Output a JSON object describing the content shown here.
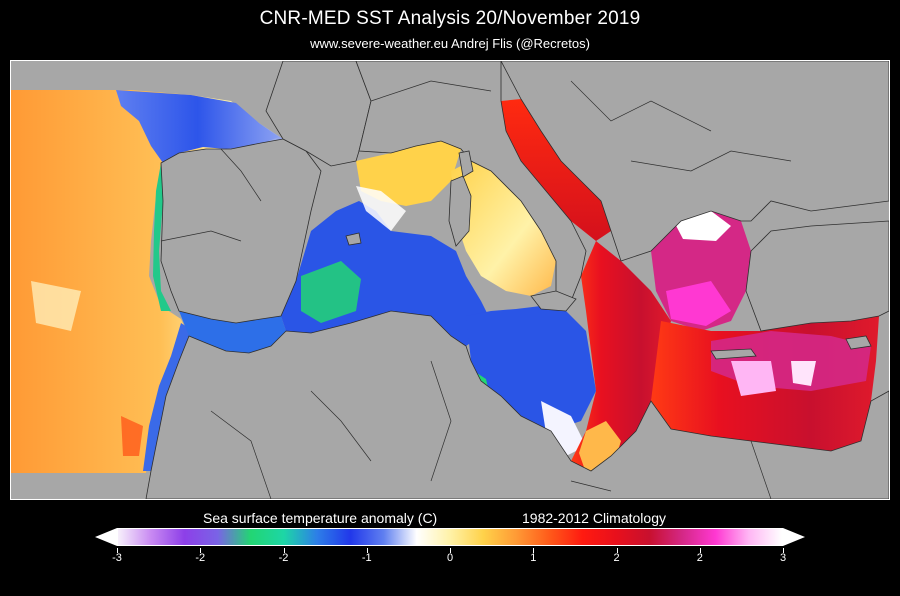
{
  "header": {
    "title": "CNR-MED SST Analysis  20/November 2019",
    "subtitle": "www.severe-weather.eu   Andrej Flis (@Recretos)"
  },
  "map": {
    "land_color": "#a7a7a7",
    "border_color": "#2f2f2f"
  },
  "legend": {
    "title": "Sea surface temperature anomaly (C)",
    "climatology": "1982-2012 Climatology",
    "tick_labels": [
      "-3",
      "-2",
      "-2",
      "-1",
      "0",
      "1",
      "2",
      "2",
      "3"
    ],
    "colors": [
      "#f7f0fb",
      "#c889f2",
      "#8d3fe8",
      "#7a63e6",
      "#22d673",
      "#1dd6a6",
      "#2d7ee8",
      "#2138ea",
      "#5f7ff0",
      "#ffffff",
      "#fff2a8",
      "#ffd24a",
      "#ff9a35",
      "#ff5a1a",
      "#ff1a10",
      "#e8101c",
      "#c8102e",
      "#d42886",
      "#ff38d2",
      "#ffb6f4",
      "#ffffff"
    ]
  }
}
